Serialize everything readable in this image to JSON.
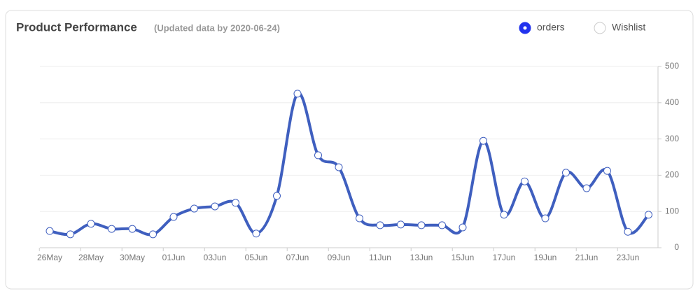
{
  "chart_data": {
    "type": "line",
    "title": "Product Performance",
    "subtitle": "(Updated data by 2020-06-24)",
    "categories": [
      "26May",
      null,
      "28May",
      null,
      "30May",
      null,
      "01Jun",
      null,
      "03Jun",
      null,
      "05Jun",
      null,
      "07Jun",
      null,
      "09Jun",
      null,
      "11Jun",
      null,
      "13Jun",
      null,
      "15Jun",
      null,
      "17Jun",
      null,
      "19Jun",
      null,
      "21Jun",
      null,
      "23Jun",
      null
    ],
    "series": [
      {
        "name": "orders",
        "color": "#3f5fbf",
        "values": [
          46,
          37,
          66,
          52,
          52,
          37,
          85,
          108,
          114,
          124,
          39,
          143,
          425,
          255,
          222,
          81,
          62,
          64,
          62,
          62,
          56,
          295,
          91,
          183,
          81,
          207,
          164,
          212,
          44,
          91
        ]
      },
      {
        "name": "Wishlist",
        "hidden": true
      }
    ],
    "ylim": [
      0,
      500
    ],
    "yticks": [
      0,
      100,
      200,
      300,
      400,
      500
    ],
    "grid": true,
    "smooth": true,
    "y_axis_side": "right"
  }
}
